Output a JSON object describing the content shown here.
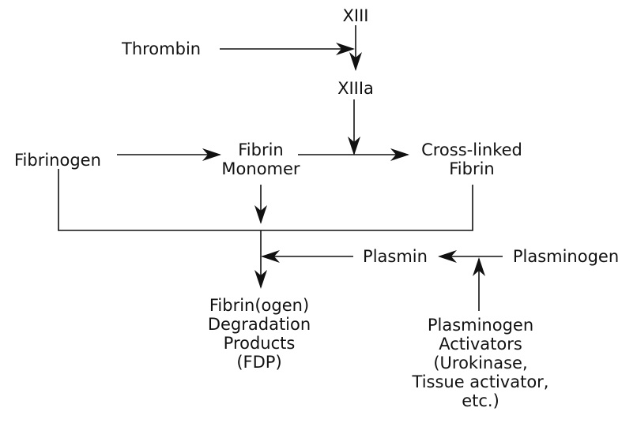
{
  "nodes": {
    "xiii": {
      "lines": [
        "XIII"
      ]
    },
    "thrombin": {
      "lines": [
        "Thrombin"
      ]
    },
    "xiiia": {
      "lines": [
        "XIIIa"
      ]
    },
    "fibrinogen": {
      "lines": [
        "Fibrinogen"
      ]
    },
    "fibrin_monomer": {
      "lines": [
        "Fibrin",
        "Monomer"
      ]
    },
    "cross_linked_fibrin": {
      "lines": [
        "Cross-linked",
        "Fibrin"
      ]
    },
    "plasmin": {
      "lines": [
        "Plasmin"
      ]
    },
    "plasminogen": {
      "lines": [
        "Plasminogen"
      ]
    },
    "fdp": {
      "lines": [
        "Fibrin(ogen)",
        "Degradation",
        "Products",
        "(FDP)"
      ]
    },
    "activators": {
      "lines": [
        "Plasminogen",
        "Activators",
        "(Urokinase,",
        "Tissue activator,",
        "etc.)"
      ]
    }
  },
  "edges": [
    {
      "from": "xiii",
      "to": "xiiia"
    },
    {
      "from": "thrombin",
      "to": "xiiia"
    },
    {
      "from": "xiiia",
      "to": "cross_linked_fibrin"
    },
    {
      "from": "fibrinogen",
      "to": "fibrin_monomer"
    },
    {
      "from": "fibrin_monomer",
      "to": "cross_linked_fibrin"
    },
    {
      "from": "fibrin_monomer",
      "to": "fdp"
    },
    {
      "from": "fibrinogen",
      "to": "fdp"
    },
    {
      "from": "cross_linked_fibrin",
      "to": "fdp"
    },
    {
      "from": "plasmin",
      "to": "fdp"
    },
    {
      "from": "plasminogen",
      "to": "plasmin"
    },
    {
      "from": "activators",
      "to": "plasmin"
    }
  ]
}
